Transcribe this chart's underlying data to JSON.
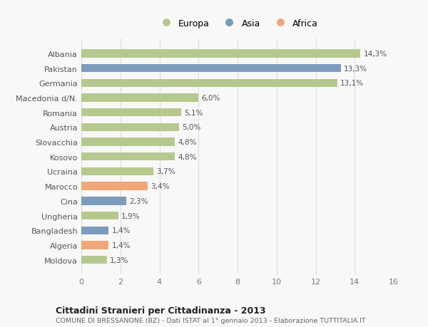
{
  "categories": [
    "Albania",
    "Pakistan",
    "Germania",
    "Macedonia d/N.",
    "Romania",
    "Austria",
    "Slovacchia",
    "Kosovo",
    "Ucraina",
    "Marocco",
    "Cina",
    "Ungheria",
    "Bangladesh",
    "Algeria",
    "Moldova"
  ],
  "values": [
    14.3,
    13.3,
    13.1,
    6.0,
    5.1,
    5.0,
    4.8,
    4.8,
    3.7,
    3.4,
    2.3,
    1.9,
    1.4,
    1.4,
    1.3
  ],
  "labels": [
    "14,3%",
    "13,3%",
    "13,1%",
    "6,0%",
    "5,1%",
    "5,0%",
    "4,8%",
    "4,8%",
    "3,7%",
    "3,4%",
    "2,3%",
    "1,9%",
    "1,4%",
    "1,4%",
    "1,3%"
  ],
  "continents": [
    "Europa",
    "Asia",
    "Europa",
    "Europa",
    "Europa",
    "Europa",
    "Europa",
    "Europa",
    "Europa",
    "Africa",
    "Asia",
    "Europa",
    "Asia",
    "Africa",
    "Europa"
  ],
  "colors": {
    "Europa": "#b5c98e",
    "Asia": "#7b9bbf",
    "Africa": "#f0a878"
  },
  "legend_order": [
    "Europa",
    "Asia",
    "Africa"
  ],
  "xlim": [
    0,
    16
  ],
  "xticks": [
    0,
    2,
    4,
    6,
    8,
    10,
    12,
    14,
    16
  ],
  "title": "Cittadini Stranieri per Cittadinanza - 2013",
  "subtitle": "COMUNE DI BRESSANONE (BZ) - Dati ISTAT al 1° gennaio 2013 - Elaborazione TUTTITALIA.IT",
  "background_color": "#f8f8f8",
  "grid_color": "#dddddd",
  "bar_height": 0.55
}
